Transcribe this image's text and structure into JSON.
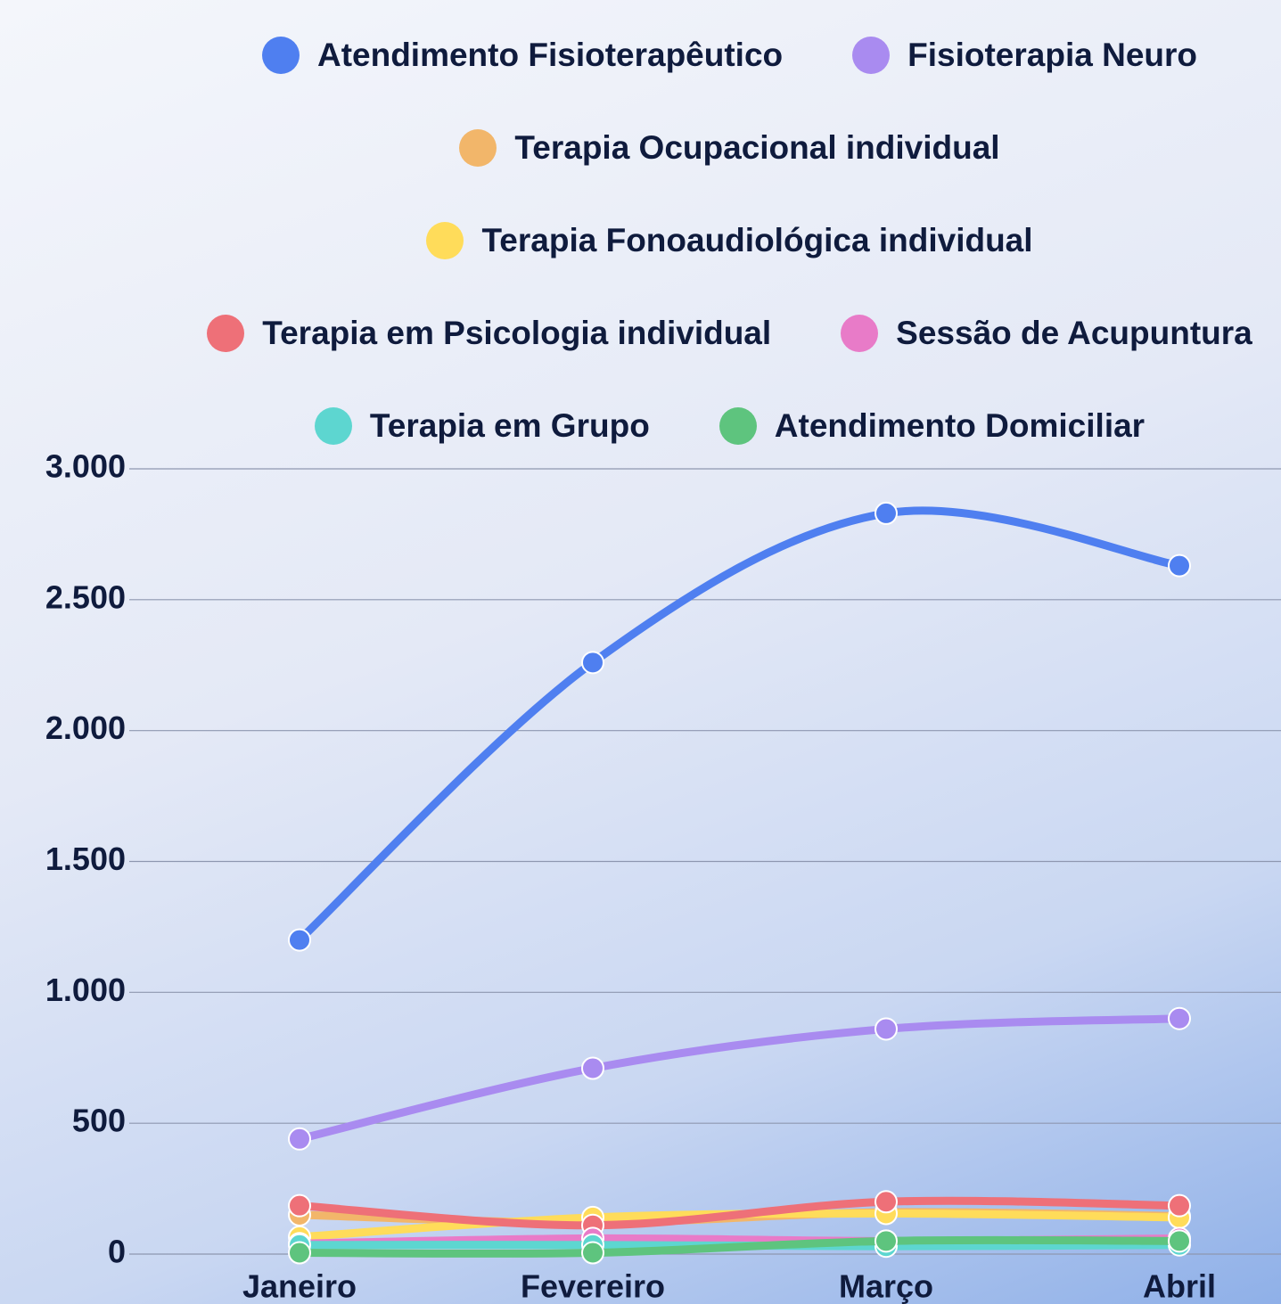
{
  "chart_data": {
    "type": "line",
    "categories": [
      "Janeiro",
      "Fevereiro",
      "Março",
      "Abril"
    ],
    "series": [
      {
        "name": "Atendimento Fisioterapêutico",
        "color": "#4f7ff0",
        "values": [
          1200,
          2260,
          2830,
          2630
        ]
      },
      {
        "name": "Fisioterapia Neuro",
        "color": "#a98bf0",
        "values": [
          440,
          710,
          860,
          900
        ]
      },
      {
        "name": "Terapia Ocupacional individual",
        "color": "#f2b66a",
        "values": [
          150,
          120,
          160,
          145
        ]
      },
      {
        "name": "Terapia Fonoaudiológica individual",
        "color": "#ffdc5a",
        "values": [
          65,
          140,
          155,
          140
        ]
      },
      {
        "name": "Terapia em Psicologia individual",
        "color": "#ee7078",
        "values": [
          185,
          110,
          200,
          185
        ]
      },
      {
        "name": "Sessão de Acupuntura",
        "color": "#e87bc8",
        "values": [
          40,
          60,
          50,
          60
        ]
      },
      {
        "name": "Terapia em Grupo",
        "color": "#5dd6d0",
        "values": [
          35,
          35,
          30,
          35
        ]
      },
      {
        "name": "Atendimento Domiciliar",
        "color": "#5ec47e",
        "values": [
          5,
          5,
          50,
          50
        ]
      }
    ],
    "ylim": [
      0,
      3000
    ],
    "yticks": [
      0,
      500,
      {
        "value": 1000,
        "label": "1.000"
      },
      {
        "value": 1500,
        "label": "1.500"
      },
      {
        "value": 2000,
        "label": "2.000"
      },
      {
        "value": 2500,
        "label": "2.500"
      },
      {
        "value": 3000,
        "label": "3.000"
      }
    ],
    "grid": true,
    "legend": "top"
  }
}
